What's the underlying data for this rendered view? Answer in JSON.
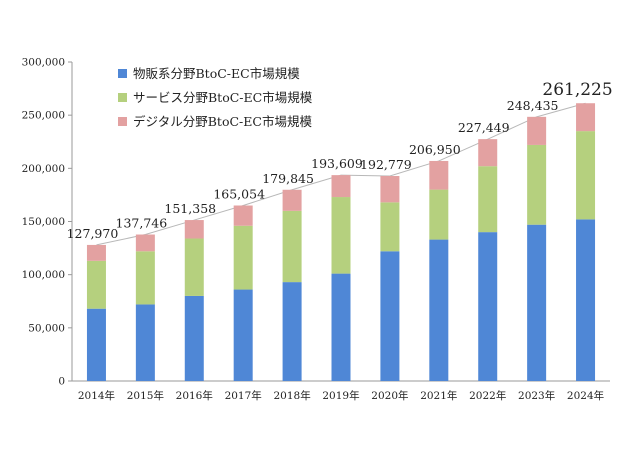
{
  "chart_data": {
    "type": "bar",
    "stacked": true,
    "categories": [
      "2014年",
      "2015年",
      "2016年",
      "2017年",
      "2018年",
      "2019年",
      "2020年",
      "2021年",
      "2022年",
      "2023年",
      "2024年"
    ],
    "series": [
      {
        "name": "物販系分野BtoC-EC市場規模",
        "color": "#4f87d6",
        "values": [
          68000,
          72000,
          80000,
          86000,
          93000,
          101000,
          122000,
          133000,
          140000,
          147000,
          152000
        ]
      },
      {
        "name": "サービス分野BtoC-EC市場規模",
        "color": "#b5d07e",
        "values": [
          45000,
          50000,
          54000,
          60000,
          67000,
          72000,
          46000,
          47000,
          62000,
          75000,
          83000
        ]
      },
      {
        "name": "デジタル分野BtoC-EC市場規模",
        "color": "#e3a1a1",
        "values": [
          14970,
          15746,
          17358,
          19054,
          19845,
          20609,
          24779,
          26950,
          25449,
          26435,
          26225
        ]
      }
    ],
    "totals": [
      "127,970",
      "137,746",
      "151,358",
      "165,054",
      "179,845",
      "193,609",
      "192,779",
      "206,950",
      "227,449",
      "248,435",
      "261,225"
    ],
    "y_ticks": [
      "0",
      "50,000",
      "100,000",
      "150,000",
      "200,000",
      "250,000",
      "300,000"
    ],
    "ylim": [
      0,
      300000
    ],
    "legend_position": "top-left",
    "grid": false
  }
}
